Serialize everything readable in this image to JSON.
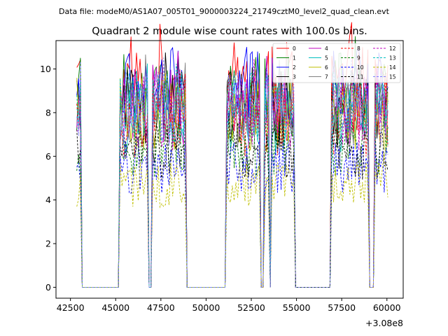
{
  "header": {
    "data_file": "Data file: modeM0/AS1A07_005T01_9000003224_21749cztM0_level2_quad_clean.evt"
  },
  "chart_data": {
    "type": "line",
    "title": "Quadrant 2 module wise count rates with 100.0s bins.",
    "xlabel": "",
    "ylabel": "",
    "x_offset_label": "+3.08e8",
    "xlim": [
      41700,
      60900
    ],
    "ylim": [
      -0.5,
      11.3
    ],
    "grid": false,
    "legend_position": "top-right",
    "x_ticks": [
      42500,
      45000,
      47500,
      50000,
      52500,
      55000,
      57500,
      60000
    ],
    "x_tick_labels": [
      "42500",
      "45000",
      "47500",
      "50000",
      "52500",
      "55000",
      "57500",
      "60000"
    ],
    "y_ticks": [
      0,
      2,
      4,
      6,
      8,
      10
    ],
    "y_tick_labels": [
      "0",
      "2",
      "4",
      "6",
      "8",
      "10"
    ],
    "segments": [
      [
        42850,
        43050
      ],
      [
        45200,
        46800
      ],
      [
        47000,
        48850
      ],
      [
        51100,
        53000
      ],
      [
        53200,
        53450
      ],
      [
        53600,
        54850
      ],
      [
        56900,
        59000
      ],
      [
        59300,
        60100
      ]
    ],
    "segment_edges_note": "rate drops to 0 between segments (gaps at 43150-45050, 46850-46950, 48950-51000, 53050-53150, 53500-53550, 54950-56800, 59100-59250)",
    "series": [
      {
        "name": "0",
        "color": "#ff0000",
        "dash": "solid",
        "mean_rate": 9.2
      },
      {
        "name": "1",
        "color": "#008000",
        "dash": "solid",
        "mean_rate": 8.8
      },
      {
        "name": "2",
        "color": "#0000ff",
        "dash": "solid",
        "mean_rate": 8.9
      },
      {
        "name": "3",
        "color": "#000000",
        "dash": "solid",
        "mean_rate": 8.2
      },
      {
        "name": "4",
        "color": "#bf00bf",
        "dash": "solid",
        "mean_rate": 8.3
      },
      {
        "name": "5",
        "color": "#00bfbf",
        "dash": "solid",
        "mean_rate": 7.8
      },
      {
        "name": "6",
        "color": "#bfbf00",
        "dash": "solid",
        "mean_rate": 7.9
      },
      {
        "name": "7",
        "color": "#808080",
        "dash": "solid",
        "mean_rate": 8.1
      },
      {
        "name": "8",
        "color": "#ff0000",
        "dash": "dashed",
        "mean_rate": 7.6
      },
      {
        "name": "9",
        "color": "#008000",
        "dash": "dashed",
        "mean_rate": 6.4
      },
      {
        "name": "10",
        "color": "#0000ff",
        "dash": "dashed",
        "mean_rate": 5.5
      },
      {
        "name": "11",
        "color": "#000000",
        "dash": "dashed",
        "mean_rate": 6.2
      },
      {
        "name": "12",
        "color": "#bf00bf",
        "dash": "dashed",
        "mean_rate": 8.0
      },
      {
        "name": "13",
        "color": "#00bfbf",
        "dash": "dashed",
        "mean_rate": 8.3
      },
      {
        "name": "14",
        "color": "#bfbf00",
        "dash": "dashed",
        "mean_rate": 4.7
      },
      {
        "name": "15",
        "color": "#8080ff",
        "dash": "dashed",
        "mean_rate": 8.2
      }
    ]
  }
}
